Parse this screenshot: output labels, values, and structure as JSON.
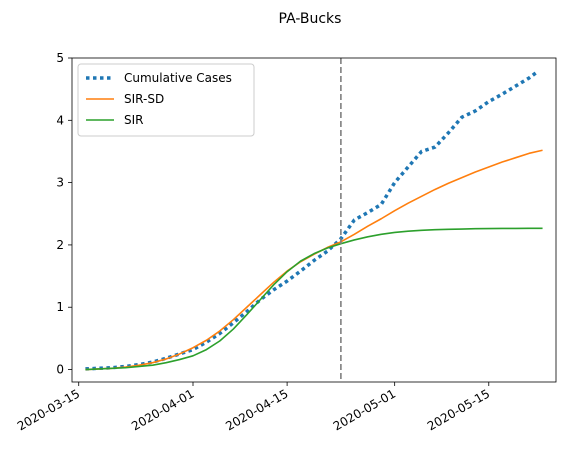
{
  "chart_data": {
    "type": "line",
    "title": "PA-Bucks",
    "xlabel": "",
    "ylabel": "",
    "x_axis": "date",
    "xlim": [
      "2020-03-14",
      "2020-05-25"
    ],
    "ylim": [
      -0.2,
      5
    ],
    "x_ticks": [
      "2020-03-15",
      "2020-04-01",
      "2020-04-15",
      "2020-05-01",
      "2020-05-15"
    ],
    "y_ticks": [
      0,
      1,
      2,
      3,
      4,
      5
    ],
    "legend_position": "top-left",
    "vertical_line": {
      "x": "2020-04-23",
      "color": "#7f7f7f",
      "style": "dashed"
    },
    "series": [
      {
        "name": "Cumulative Cases",
        "color": "#1f77b4",
        "style": "dotted",
        "points": [
          [
            "2020-03-16",
            0.01
          ],
          [
            "2020-03-18",
            0.02
          ],
          [
            "2020-03-20",
            0.03
          ],
          [
            "2020-03-22",
            0.05
          ],
          [
            "2020-03-24",
            0.08
          ],
          [
            "2020-03-26",
            0.12
          ],
          [
            "2020-03-28",
            0.18
          ],
          [
            "2020-03-30",
            0.25
          ],
          [
            "2020-04-01",
            0.32
          ],
          [
            "2020-04-03",
            0.44
          ],
          [
            "2020-04-05",
            0.58
          ],
          [
            "2020-04-07",
            0.75
          ],
          [
            "2020-04-09",
            0.93
          ],
          [
            "2020-04-11",
            1.12
          ],
          [
            "2020-04-13",
            1.28
          ],
          [
            "2020-04-15",
            1.42
          ],
          [
            "2020-04-17",
            1.58
          ],
          [
            "2020-04-19",
            1.75
          ],
          [
            "2020-04-21",
            1.9
          ],
          [
            "2020-04-23",
            2.1
          ],
          [
            "2020-04-25",
            2.4
          ],
          [
            "2020-04-27",
            2.52
          ],
          [
            "2020-04-29",
            2.65
          ],
          [
            "2020-05-01",
            3.0
          ],
          [
            "2020-05-03",
            3.25
          ],
          [
            "2020-05-05",
            3.5
          ],
          [
            "2020-05-07",
            3.57
          ],
          [
            "2020-05-09",
            3.8
          ],
          [
            "2020-05-11",
            4.05
          ],
          [
            "2020-05-13",
            4.15
          ],
          [
            "2020-05-15",
            4.3
          ],
          [
            "2020-05-17",
            4.42
          ],
          [
            "2020-05-19",
            4.55
          ],
          [
            "2020-05-21",
            4.68
          ],
          [
            "2020-05-22",
            4.76
          ]
        ]
      },
      {
        "name": "SIR-SD",
        "color": "#ff7f0e",
        "style": "solid",
        "points": [
          [
            "2020-03-16",
            0.0
          ],
          [
            "2020-03-18",
            0.01
          ],
          [
            "2020-03-20",
            0.02
          ],
          [
            "2020-03-22",
            0.04
          ],
          [
            "2020-03-24",
            0.07
          ],
          [
            "2020-03-26",
            0.11
          ],
          [
            "2020-03-28",
            0.17
          ],
          [
            "2020-03-30",
            0.25
          ],
          [
            "2020-04-01",
            0.35
          ],
          [
            "2020-04-03",
            0.47
          ],
          [
            "2020-04-05",
            0.62
          ],
          [
            "2020-04-07",
            0.8
          ],
          [
            "2020-04-09",
            1.0
          ],
          [
            "2020-04-11",
            1.2
          ],
          [
            "2020-04-13",
            1.4
          ],
          [
            "2020-04-15",
            1.58
          ],
          [
            "2020-04-17",
            1.73
          ],
          [
            "2020-04-19",
            1.85
          ],
          [
            "2020-04-21",
            1.96
          ],
          [
            "2020-04-23",
            2.05
          ],
          [
            "2020-04-25",
            2.17
          ],
          [
            "2020-04-27",
            2.3
          ],
          [
            "2020-04-29",
            2.42
          ],
          [
            "2020-05-01",
            2.55
          ],
          [
            "2020-05-03",
            2.67
          ],
          [
            "2020-05-05",
            2.78
          ],
          [
            "2020-05-07",
            2.89
          ],
          [
            "2020-05-09",
            2.99
          ],
          [
            "2020-05-11",
            3.08
          ],
          [
            "2020-05-13",
            3.17
          ],
          [
            "2020-05-15",
            3.25
          ],
          [
            "2020-05-17",
            3.33
          ],
          [
            "2020-05-19",
            3.4
          ],
          [
            "2020-05-21",
            3.47
          ],
          [
            "2020-05-23",
            3.52
          ]
        ]
      },
      {
        "name": "SIR",
        "color": "#2ca02c",
        "style": "solid",
        "points": [
          [
            "2020-03-16",
            0.0
          ],
          [
            "2020-03-18",
            0.01
          ],
          [
            "2020-03-20",
            0.02
          ],
          [
            "2020-03-22",
            0.03
          ],
          [
            "2020-03-24",
            0.05
          ],
          [
            "2020-03-26",
            0.07
          ],
          [
            "2020-03-28",
            0.11
          ],
          [
            "2020-03-30",
            0.16
          ],
          [
            "2020-04-01",
            0.22
          ],
          [
            "2020-04-03",
            0.32
          ],
          [
            "2020-04-05",
            0.46
          ],
          [
            "2020-04-07",
            0.65
          ],
          [
            "2020-04-09",
            0.88
          ],
          [
            "2020-04-11",
            1.12
          ],
          [
            "2020-04-13",
            1.36
          ],
          [
            "2020-04-15",
            1.57
          ],
          [
            "2020-04-17",
            1.74
          ],
          [
            "2020-04-19",
            1.86
          ],
          [
            "2020-04-21",
            1.95
          ],
          [
            "2020-04-23",
            2.02
          ],
          [
            "2020-04-25",
            2.08
          ],
          [
            "2020-04-27",
            2.13
          ],
          [
            "2020-04-29",
            2.17
          ],
          [
            "2020-05-01",
            2.2
          ],
          [
            "2020-05-03",
            2.22
          ],
          [
            "2020-05-05",
            2.235
          ],
          [
            "2020-05-07",
            2.245
          ],
          [
            "2020-05-09",
            2.25
          ],
          [
            "2020-05-11",
            2.255
          ],
          [
            "2020-05-13",
            2.26
          ],
          [
            "2020-05-15",
            2.262
          ],
          [
            "2020-05-17",
            2.264
          ],
          [
            "2020-05-19",
            2.265
          ],
          [
            "2020-05-21",
            2.266
          ],
          [
            "2020-05-23",
            2.267
          ]
        ]
      }
    ]
  }
}
